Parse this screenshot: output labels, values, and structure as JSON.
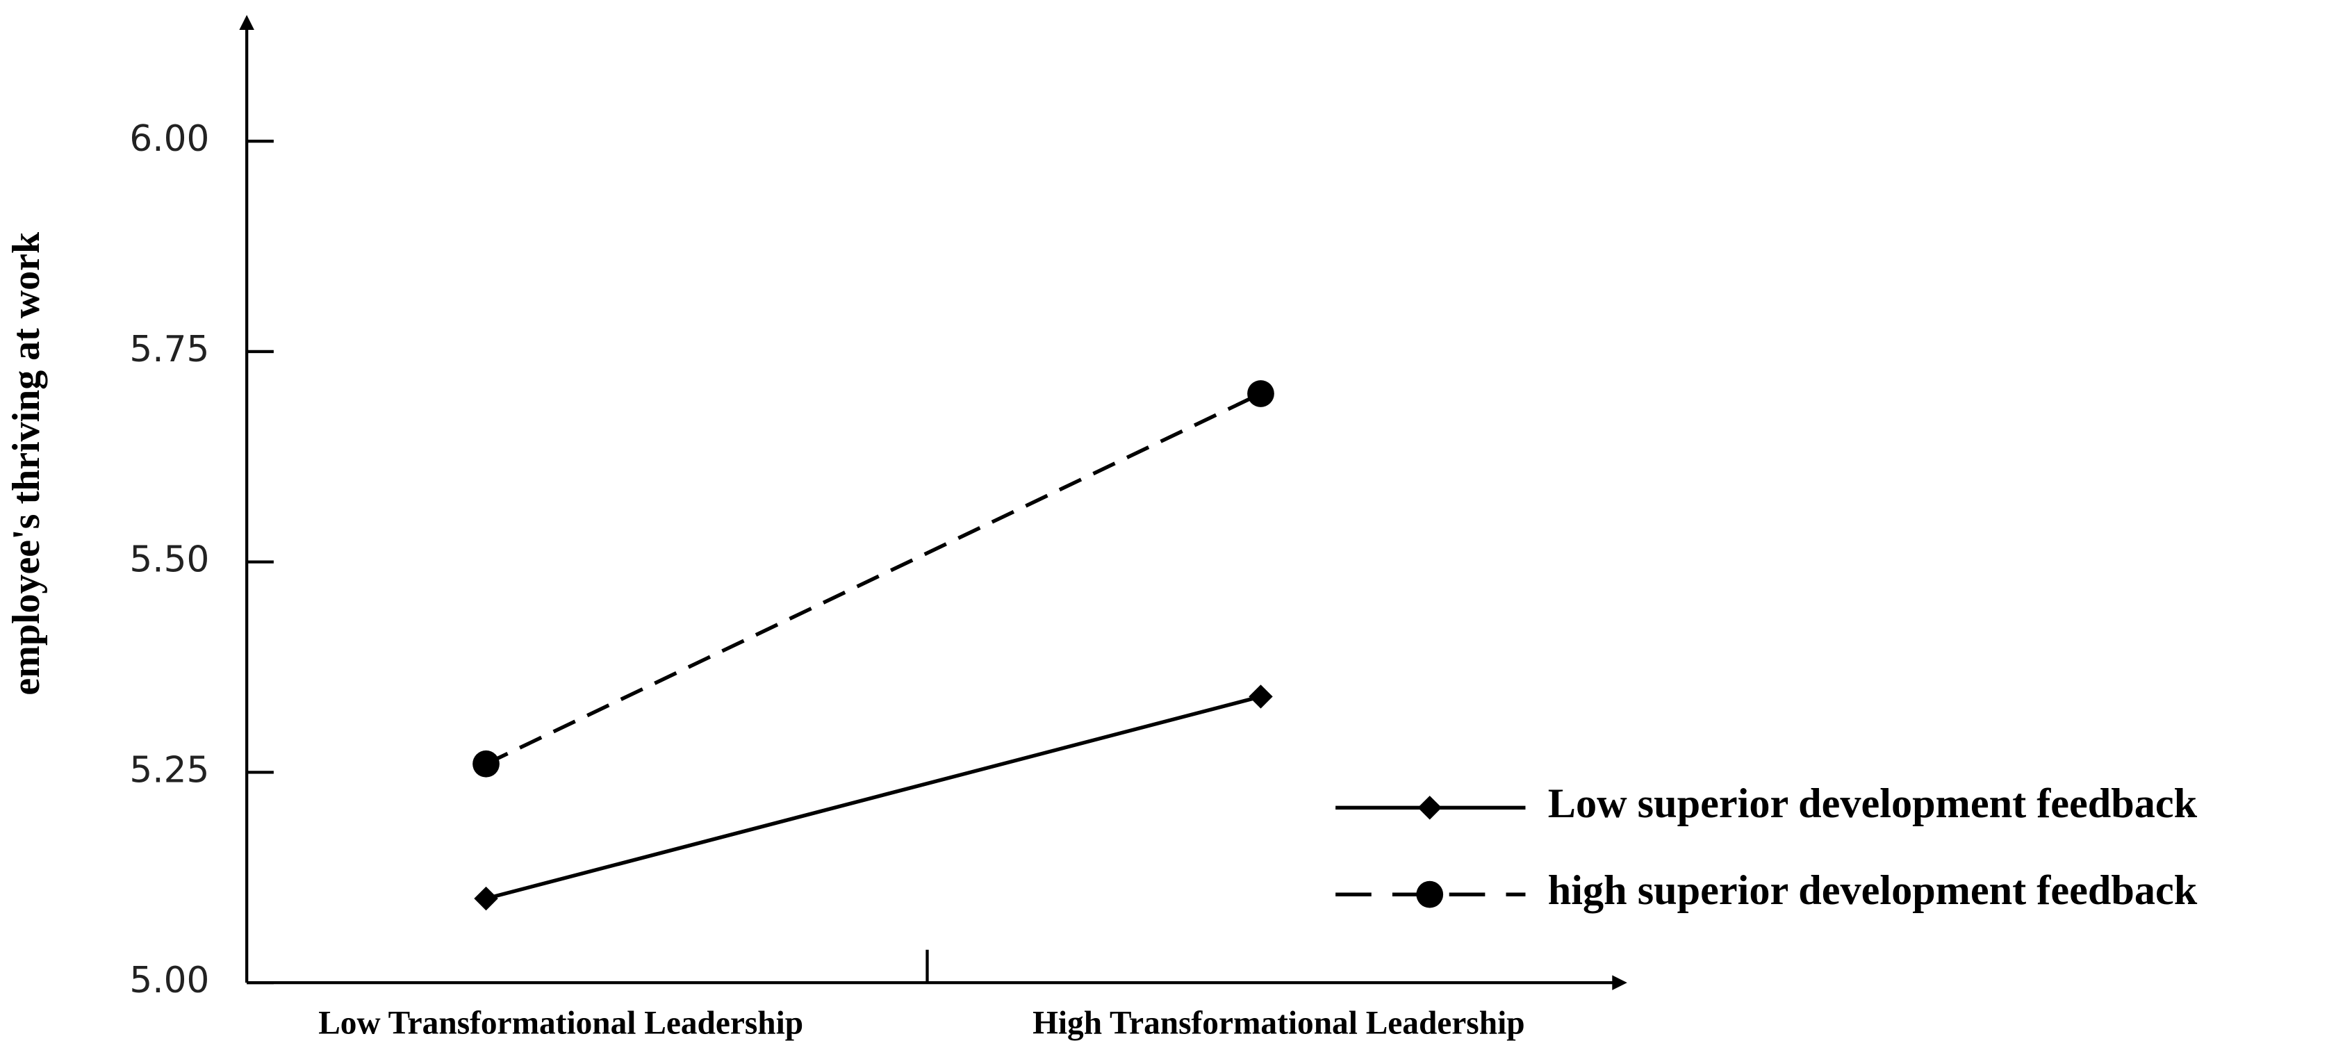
{
  "chart_data": {
    "type": "line",
    "y_label": "employee's thriving at work",
    "categories": [
      "Low Transformational Leadership",
      "High Transformational Leadership"
    ],
    "series": [
      {
        "name": "Low superior development feedback",
        "color": "#000000",
        "marker": "diamond",
        "dash": "solid",
        "values": [
          5.1,
          5.34
        ]
      },
      {
        "name": "high superior development feedback",
        "color": "#000000",
        "marker": "circle",
        "dash": "dashed",
        "values": [
          5.26,
          5.7
        ]
      }
    ],
    "ylim": [
      5.0,
      6.15
    ],
    "yticks": [
      {
        "value": 5.0,
        "label": "5.00"
      },
      {
        "value": 5.25,
        "label": "5.25"
      },
      {
        "value": 5.5,
        "label": "5.50"
      },
      {
        "value": 5.75,
        "label": "5.75"
      },
      {
        "value": 6.0,
        "label": "6.00"
      }
    ],
    "legend": "right"
  }
}
